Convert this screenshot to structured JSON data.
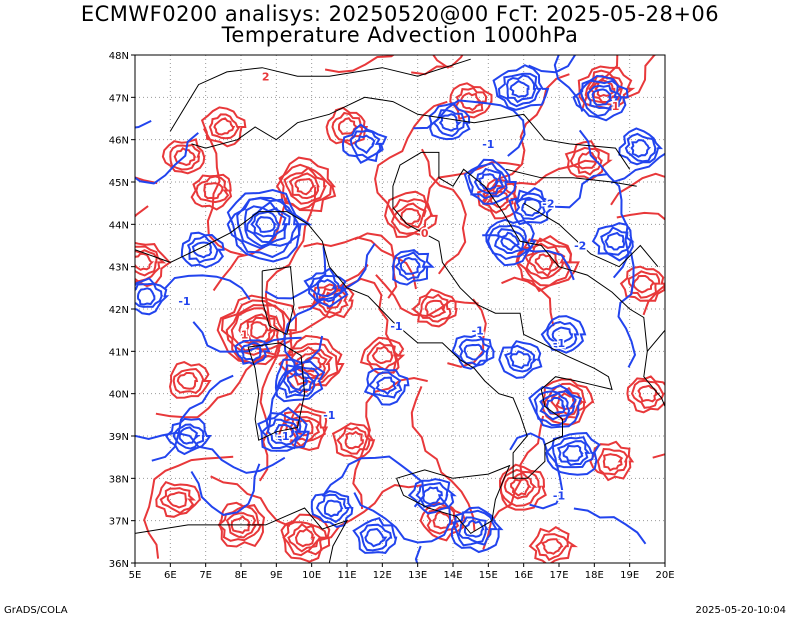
{
  "titles": {
    "line1": "ECMWF0200 analisys: 20250520@00 FcT: 2025-05-28+06",
    "line2": "Temperature Advection 1000hPa"
  },
  "footer": {
    "left": "GrADS/COLA",
    "right": "2025-05-20-10:04"
  },
  "map": {
    "lon_ticks": [
      "5E",
      "6E",
      "7E",
      "8E",
      "9E",
      "10E",
      "11E",
      "12E",
      "13E",
      "14E",
      "15E",
      "16E",
      "17E",
      "18E",
      "19E",
      "20E"
    ],
    "lat_ticks": [
      "48N",
      "47N",
      "46N",
      "45N",
      "44N",
      "43N",
      "42N",
      "41N",
      "40N",
      "39N",
      "38N",
      "37N",
      "36N"
    ],
    "lon_range": [
      5,
      20
    ],
    "lat_range": [
      36,
      48
    ],
    "field": "temperature advection",
    "contour_colors": {
      "positive": "#e8383a",
      "negative": "#2244ee"
    },
    "contour_labels": [
      {
        "text": "2",
        "lon": 8.7,
        "lat": 47.4
      },
      {
        "text": "-1",
        "lon": 15.0,
        "lat": 45.8
      },
      {
        "text": "-2",
        "lon": 16.7,
        "lat": 44.4
      },
      {
        "text": "-2",
        "lon": 17.6,
        "lat": 43.4
      },
      {
        "text": "1",
        "lon": 18.6,
        "lat": 46.7
      },
      {
        "text": "-1",
        "lon": 12.4,
        "lat": 41.5
      },
      {
        "text": "-1",
        "lon": 6.4,
        "lat": 42.1
      },
      {
        "text": "-1",
        "lon": 10.5,
        "lat": 39.4
      },
      {
        "text": "-1",
        "lon": 14.7,
        "lat": 41.4
      },
      {
        "text": "1",
        "lon": 8.1,
        "lat": 41.3
      },
      {
        "text": "-1",
        "lon": 9.2,
        "lat": 38.9
      },
      {
        "text": "0",
        "lon": 13.2,
        "lat": 43.7
      },
      {
        "text": "-1",
        "lon": 17.0,
        "lat": 41.1
      },
      {
        "text": "-1",
        "lon": 17.0,
        "lat": 37.5
      }
    ]
  }
}
